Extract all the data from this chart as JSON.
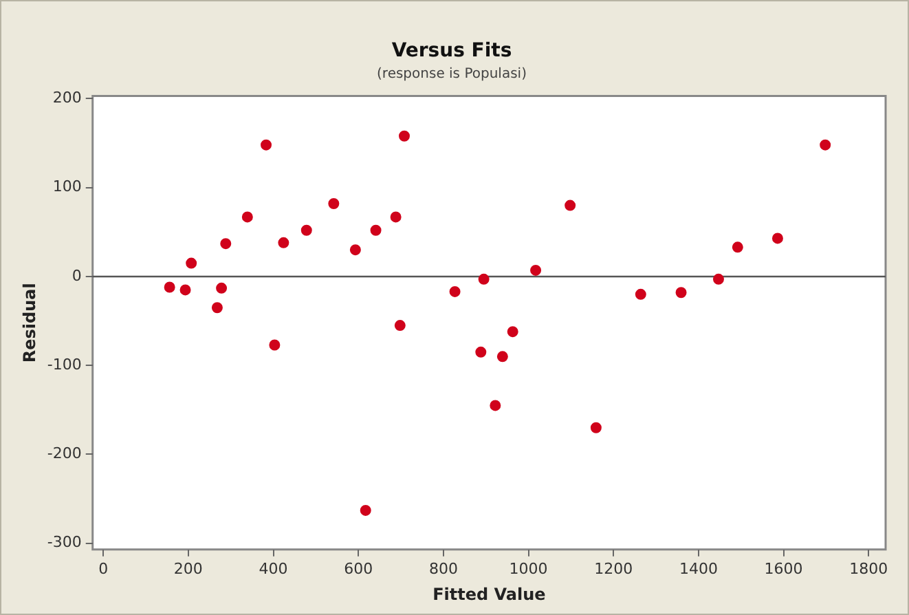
{
  "chart_data": {
    "type": "scatter",
    "title": "Versus Fits",
    "subtitle": "(response is Populasi)",
    "xlabel": "Fitted Value",
    "ylabel": "Residual",
    "x": [
      156,
      193,
      207,
      268,
      278,
      288,
      339,
      383,
      403,
      424,
      478,
      542,
      593,
      617,
      641,
      688,
      698,
      708,
      827,
      888,
      895,
      922,
      939,
      963,
      1017,
      1098,
      1159,
      1264,
      1359,
      1447,
      1492,
      1586,
      1698
    ],
    "values": [
      -12,
      -15,
      15,
      -35,
      -13,
      37,
      67,
      148,
      -77,
      38,
      52,
      82,
      30,
      -263,
      52,
      67,
      -55,
      158,
      -17,
      -85,
      -3,
      -145,
      -90,
      -62,
      7,
      80,
      -170,
      -20,
      -18,
      -3,
      33,
      43,
      148
    ],
    "color": "#d0021b",
    "marker": "circle",
    "grid": false,
    "legend": false,
    "xlim": [
      -25,
      1840
    ],
    "ylim": [
      -307,
      203
    ],
    "xticks": [
      0,
      200,
      400,
      600,
      800,
      1000,
      1200,
      1400,
      1600,
      1800
    ],
    "yticks": [
      -300,
      -200,
      -100,
      0,
      100,
      200
    ],
    "ref_lines": [
      {
        "axis": "y",
        "value": 0,
        "color": "#555555"
      }
    ]
  }
}
